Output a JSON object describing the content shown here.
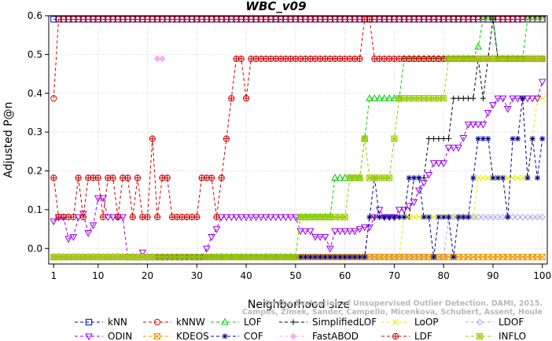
{
  "chart_data": {
    "type": "line",
    "title": "WBC_v09",
    "xlabel": "Neighborhood size",
    "ylabel": "Adjusted P@n",
    "xlim": [
      0,
      101
    ],
    "ylim": [
      -0.04,
      0.6
    ],
    "xticks": [
      1,
      10,
      20,
      30,
      40,
      50,
      60,
      70,
      80,
      90,
      100
    ],
    "yticks": [
      0.0,
      0.1,
      0.2,
      0.3,
      0.4,
      0.5,
      0.6
    ],
    "ytick_labels": [
      "0.0",
      "0.1",
      "0.2",
      "0.3",
      "0.4",
      "0.5",
      "0.6"
    ],
    "legend_position": "bottom",
    "watermark": [
      "Campos, Zimek, Sander, Campello, Micenkova, Schubert, Assent, Houle",
      "On the Evaluation of Unsupervised Outlier Detection. DAMI, 2015."
    ],
    "series": [
      {
        "name": "kNN",
        "color": "#0000dd",
        "marker": "square",
        "segments": [
          {
            "x0": 1,
            "x1": 100,
            "points": [
              [
                1,
                0.591
              ],
              [
                100,
                0.591
              ]
            ]
          }
        ]
      },
      {
        "name": "kNNW",
        "color": "#dd0000",
        "marker": "circle",
        "segments": [
          {
            "x0": 1,
            "x1": 100,
            "points": [
              [
                1,
                0.387
              ],
              [
                2,
                0.591
              ],
              [
                100,
                0.591
              ]
            ]
          }
        ]
      },
      {
        "name": "LOF",
        "color": "#00cc00",
        "marker": "triangle-up",
        "segments": [
          {
            "x0": 1,
            "x1": 100,
            "points": [
              [
                1,
                -0.022
              ],
              [
                50,
                -0.022
              ],
              [
                51,
                0.081
              ],
              [
                57,
                0.081
              ],
              [
                58,
                0.182
              ],
              [
                63,
                0.182
              ],
              [
                64,
                0.283
              ],
              [
                65,
                0.387
              ],
              [
                71,
                0.387
              ],
              [
                72,
                0.489
              ],
              [
                86,
                0.489
              ],
              [
                87,
                0.52
              ],
              [
                88,
                0.591
              ],
              [
                90,
                0.591
              ],
              [
                91,
                0.489
              ],
              [
                96,
                0.489
              ],
              [
                97,
                0.591
              ],
              [
                100,
                0.591
              ]
            ]
          }
        ]
      },
      {
        "name": "SimplifiedLOF",
        "color": "#000000",
        "marker": "plus",
        "segments": [
          {
            "x0": 1,
            "x1": 100,
            "points": [
              [
                1,
                -0.022
              ],
              [
                64,
                -0.022
              ],
              [
                65,
                0.081
              ],
              [
                73,
                0.081
              ],
              [
                74,
                0.182
              ],
              [
                76,
                0.182
              ],
              [
                77,
                0.283
              ],
              [
                81,
                0.283
              ],
              [
                82,
                0.387
              ],
              [
                86,
                0.387
              ],
              [
                87,
                0.489
              ],
              [
                88,
                0.387
              ],
              [
                89,
                0.489
              ],
              [
                90,
                0.591
              ],
              [
                91,
                0.489
              ],
              [
                100,
                0.489
              ]
            ]
          }
        ]
      },
      {
        "name": "LoOP",
        "color": "#eeee00",
        "marker": "cross",
        "segments": [
          {
            "x0": 1,
            "x1": 100,
            "points": [
              [
                1,
                -0.022
              ],
              [
                71,
                -0.022
              ],
              [
                72,
                0.081
              ],
              [
                86,
                0.081
              ],
              [
                87,
                0.182
              ],
              [
                97,
                0.182
              ],
              [
                98,
                0.283
              ],
              [
                99,
                0.387
              ],
              [
                100,
                0.387
              ]
            ]
          }
        ]
      },
      {
        "name": "LDOF",
        "color": "#aaaaee",
        "marker": "diamond",
        "segments": [
          {
            "x0": 1,
            "x1": 100,
            "points": [
              [
                1,
                -0.022
              ],
              [
                80,
                -0.022
              ],
              [
                81,
                0.081
              ],
              [
                100,
                0.081
              ]
            ]
          }
        ]
      },
      {
        "name": "ODIN",
        "color": "#9900ee",
        "marker": "triangle-down",
        "segments": [
          {
            "x0": 1,
            "x1": 100,
            "points": [
              [
                1,
                0.07
              ],
              [
                2,
                0.081
              ],
              [
                3,
                0.081
              ],
              [
                4,
                0.025
              ],
              [
                5,
                0.03
              ],
              [
                6,
                0.081
              ],
              [
                7,
                0.09
              ],
              [
                8,
                0.04
              ],
              [
                9,
                0.06
              ],
              [
                10,
                0.13
              ],
              [
                11,
                0.13
              ],
              [
                12,
                0.081
              ],
              [
                15,
                0.081
              ],
              [
                16,
                -0.022
              ],
              [
                18,
                -0.022
              ],
              [
                19,
                -0.01
              ],
              [
                20,
                -0.022
              ],
              [
                31,
                -0.022
              ],
              [
                32,
                0.0
              ],
              [
                33,
                0.03
              ],
              [
                34,
                0.05
              ],
              [
                35,
                0.081
              ],
              [
                50,
                0.081
              ],
              [
                51,
                0.045
              ],
              [
                53,
                0.045
              ],
              [
                54,
                0.03
              ],
              [
                56,
                0.03
              ],
              [
                57,
                0.0
              ],
              [
                58,
                0.045
              ],
              [
                62,
                0.045
              ],
              [
                63,
                0.05
              ],
              [
                64,
                0.055
              ],
              [
                65,
                0.055
              ],
              [
                66,
                0.081
              ],
              [
                67,
                0.1
              ],
              [
                68,
                0.081
              ],
              [
                69,
                0.081
              ],
              [
                70,
                0.081
              ],
              [
                71,
                0.1
              ],
              [
                72,
                0.1
              ],
              [
                73,
                0.11
              ],
              [
                74,
                0.12
              ],
              [
                75,
                0.15
              ],
              [
                76,
                0.17
              ],
              [
                77,
                0.19
              ],
              [
                78,
                0.22
              ],
              [
                80,
                0.22
              ],
              [
                81,
                0.26
              ],
              [
                83,
                0.26
              ],
              [
                84,
                0.285
              ],
              [
                85,
                0.32
              ],
              [
                88,
                0.32
              ],
              [
                89,
                0.35
              ],
              [
                90,
                0.37
              ],
              [
                91,
                0.387
              ],
              [
                92,
                0.387
              ],
              [
                93,
                0.36
              ],
              [
                94,
                0.387
              ],
              [
                98,
                0.387
              ],
              [
                99,
                0.387
              ],
              [
                100,
                0.43
              ]
            ]
          }
        ]
      },
      {
        "name": "KDEOS",
        "color": "#ee9900",
        "marker": "square-x",
        "segments": [
          {
            "x0": 1,
            "x1": 100,
            "points": [
              [
                1,
                -0.022
              ],
              [
                100,
                -0.022
              ]
            ]
          }
        ]
      },
      {
        "name": "COF",
        "color": "#000088",
        "marker": "asterisk",
        "segments": [
          {
            "x0": 1,
            "x1": 100,
            "points": [
              [
                1,
                -0.022
              ],
              [
                64,
                -0.022
              ],
              [
                65,
                0.081
              ],
              [
                66,
                0.182
              ],
              [
                67,
                0.081
              ],
              [
                72,
                0.081
              ],
              [
                73,
                0.182
              ],
              [
                74,
                0.182
              ],
              [
                75,
                0.182
              ],
              [
                76,
                0.081
              ],
              [
                77,
                0.081
              ],
              [
                78,
                -0.022
              ],
              [
                79,
                0.081
              ],
              [
                81,
                0.081
              ],
              [
                82,
                -0.022
              ],
              [
                83,
                0.081
              ],
              [
                85,
                0.081
              ],
              [
                86,
                0.182
              ],
              [
                87,
                0.283
              ],
              [
                89,
                0.283
              ],
              [
                90,
                0.182
              ],
              [
                92,
                0.182
              ],
              [
                93,
                0.081
              ],
              [
                94,
                0.283
              ],
              [
                95,
                0.283
              ],
              [
                96,
                0.387
              ],
              [
                97,
                0.182
              ],
              [
                98,
                0.283
              ],
              [
                99,
                0.182
              ],
              [
                100,
                0.283
              ]
            ]
          }
        ]
      },
      {
        "name": "FastABOD",
        "color": "#ffaaee",
        "marker": "diamond-filled",
        "segments": [
          {
            "x0": 1,
            "x1": 21,
            "points": [
              [
                1,
                -0.022
              ],
              [
                21,
                -0.022
              ]
            ]
          },
          {
            "x0": 22,
            "x1": 23,
            "points": [
              [
                22,
                0.489
              ],
              [
                23,
                0.489
              ]
            ]
          }
        ]
      },
      {
        "name": "LDF",
        "color": "#cc0000",
        "marker": "circle-plus",
        "segments": [
          {
            "x0": 1,
            "x1": 100,
            "points": [
              [
                1,
                0.182
              ],
              [
                2,
                0.081
              ],
              [
                5,
                0.081
              ],
              [
                6,
                0.182
              ],
              [
                7,
                0.081
              ],
              [
                8,
                0.182
              ],
              [
                10,
                0.182
              ],
              [
                11,
                0.081
              ],
              [
                12,
                0.182
              ],
              [
                13,
                0.182
              ],
              [
                14,
                0.081
              ],
              [
                15,
                0.182
              ],
              [
                16,
                0.182
              ],
              [
                17,
                0.081
              ],
              [
                18,
                0.182
              ],
              [
                19,
                0.081
              ],
              [
                20,
                0.081
              ],
              [
                21,
                0.283
              ],
              [
                22,
                0.081
              ],
              [
                23,
                0.182
              ],
              [
                24,
                0.182
              ],
              [
                25,
                0.081
              ],
              [
                30,
                0.081
              ],
              [
                31,
                0.182
              ],
              [
                33,
                0.182
              ],
              [
                34,
                0.081
              ],
              [
                35,
                0.182
              ],
              [
                36,
                0.283
              ],
              [
                37,
                0.387
              ],
              [
                38,
                0.489
              ],
              [
                39,
                0.489
              ],
              [
                40,
                0.387
              ],
              [
                41,
                0.489
              ],
              [
                63,
                0.489
              ],
              [
                64,
                0.591
              ],
              [
                65,
                0.591
              ],
              [
                66,
                0.489
              ],
              [
                100,
                0.489
              ]
            ]
          }
        ]
      },
      {
        "name": "INFLO",
        "color": "#99cc00",
        "marker": "square-star",
        "segments": [
          {
            "x0": 1,
            "x1": 100,
            "points": [
              [
                1,
                -0.022
              ],
              [
                50,
                -0.022
              ],
              [
                51,
                0.081
              ],
              [
                60,
                0.081
              ],
              [
                61,
                0.182
              ],
              [
                63,
                0.182
              ],
              [
                64,
                0.283
              ],
              [
                65,
                0.182
              ],
              [
                69,
                0.182
              ],
              [
                70,
                0.283
              ],
              [
                71,
                0.387
              ],
              [
                80,
                0.387
              ],
              [
                81,
                0.489
              ],
              [
                90,
                0.489
              ],
              [
                91,
                0.489
              ],
              [
                100,
                0.489
              ]
            ]
          }
        ]
      }
    ]
  }
}
